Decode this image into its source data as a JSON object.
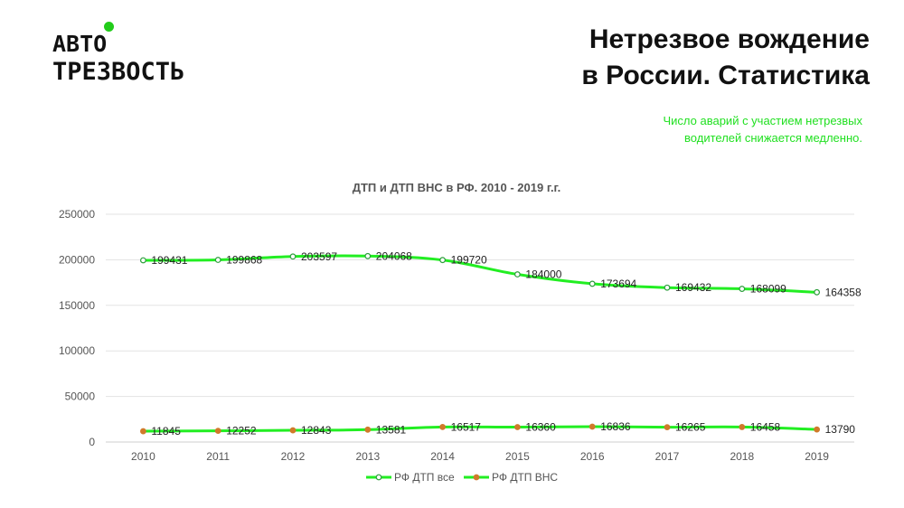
{
  "logo": {
    "line1": "АВТО",
    "line2": "ТРЕЗВОСТЬ"
  },
  "header": {
    "title_line1": "Нетрезвое вождение",
    "title_line2": "в России. Статистика"
  },
  "note": {
    "line1": "Число аварий с участием нетрезвых",
    "line2": "водителей снижается медленно."
  },
  "colors": {
    "series1": "#22ee22",
    "series1_marker": "#2a9d3a",
    "series2": "#22ee22",
    "series2_marker": "#d07a2a",
    "note": "#21e021"
  },
  "chart_data": {
    "type": "line",
    "title": "ДТП и ДТП ВНС в РФ. 2010 - 2019 г.г.",
    "xlabel": "",
    "ylabel": "",
    "x": [
      "2010",
      "2011",
      "2012",
      "2013",
      "2014",
      "2015",
      "2016",
      "2017",
      "2018",
      "2019"
    ],
    "ylim": [
      0,
      250000
    ],
    "yticks": [
      "0",
      "50000",
      "100000",
      "150000",
      "200000",
      "250000"
    ],
    "grid": true,
    "legend": "bottom",
    "series": [
      {
        "name": "РФ ДТП все",
        "values": [
          199431,
          199868,
          203597,
          204068,
          199720,
          184000,
          173694,
          169432,
          168099,
          164358
        ]
      },
      {
        "name": "РФ ДТП ВНС",
        "values": [
          11845,
          12252,
          12843,
          13581,
          16517,
          16360,
          16836,
          16265,
          16458,
          13790
        ]
      }
    ]
  }
}
